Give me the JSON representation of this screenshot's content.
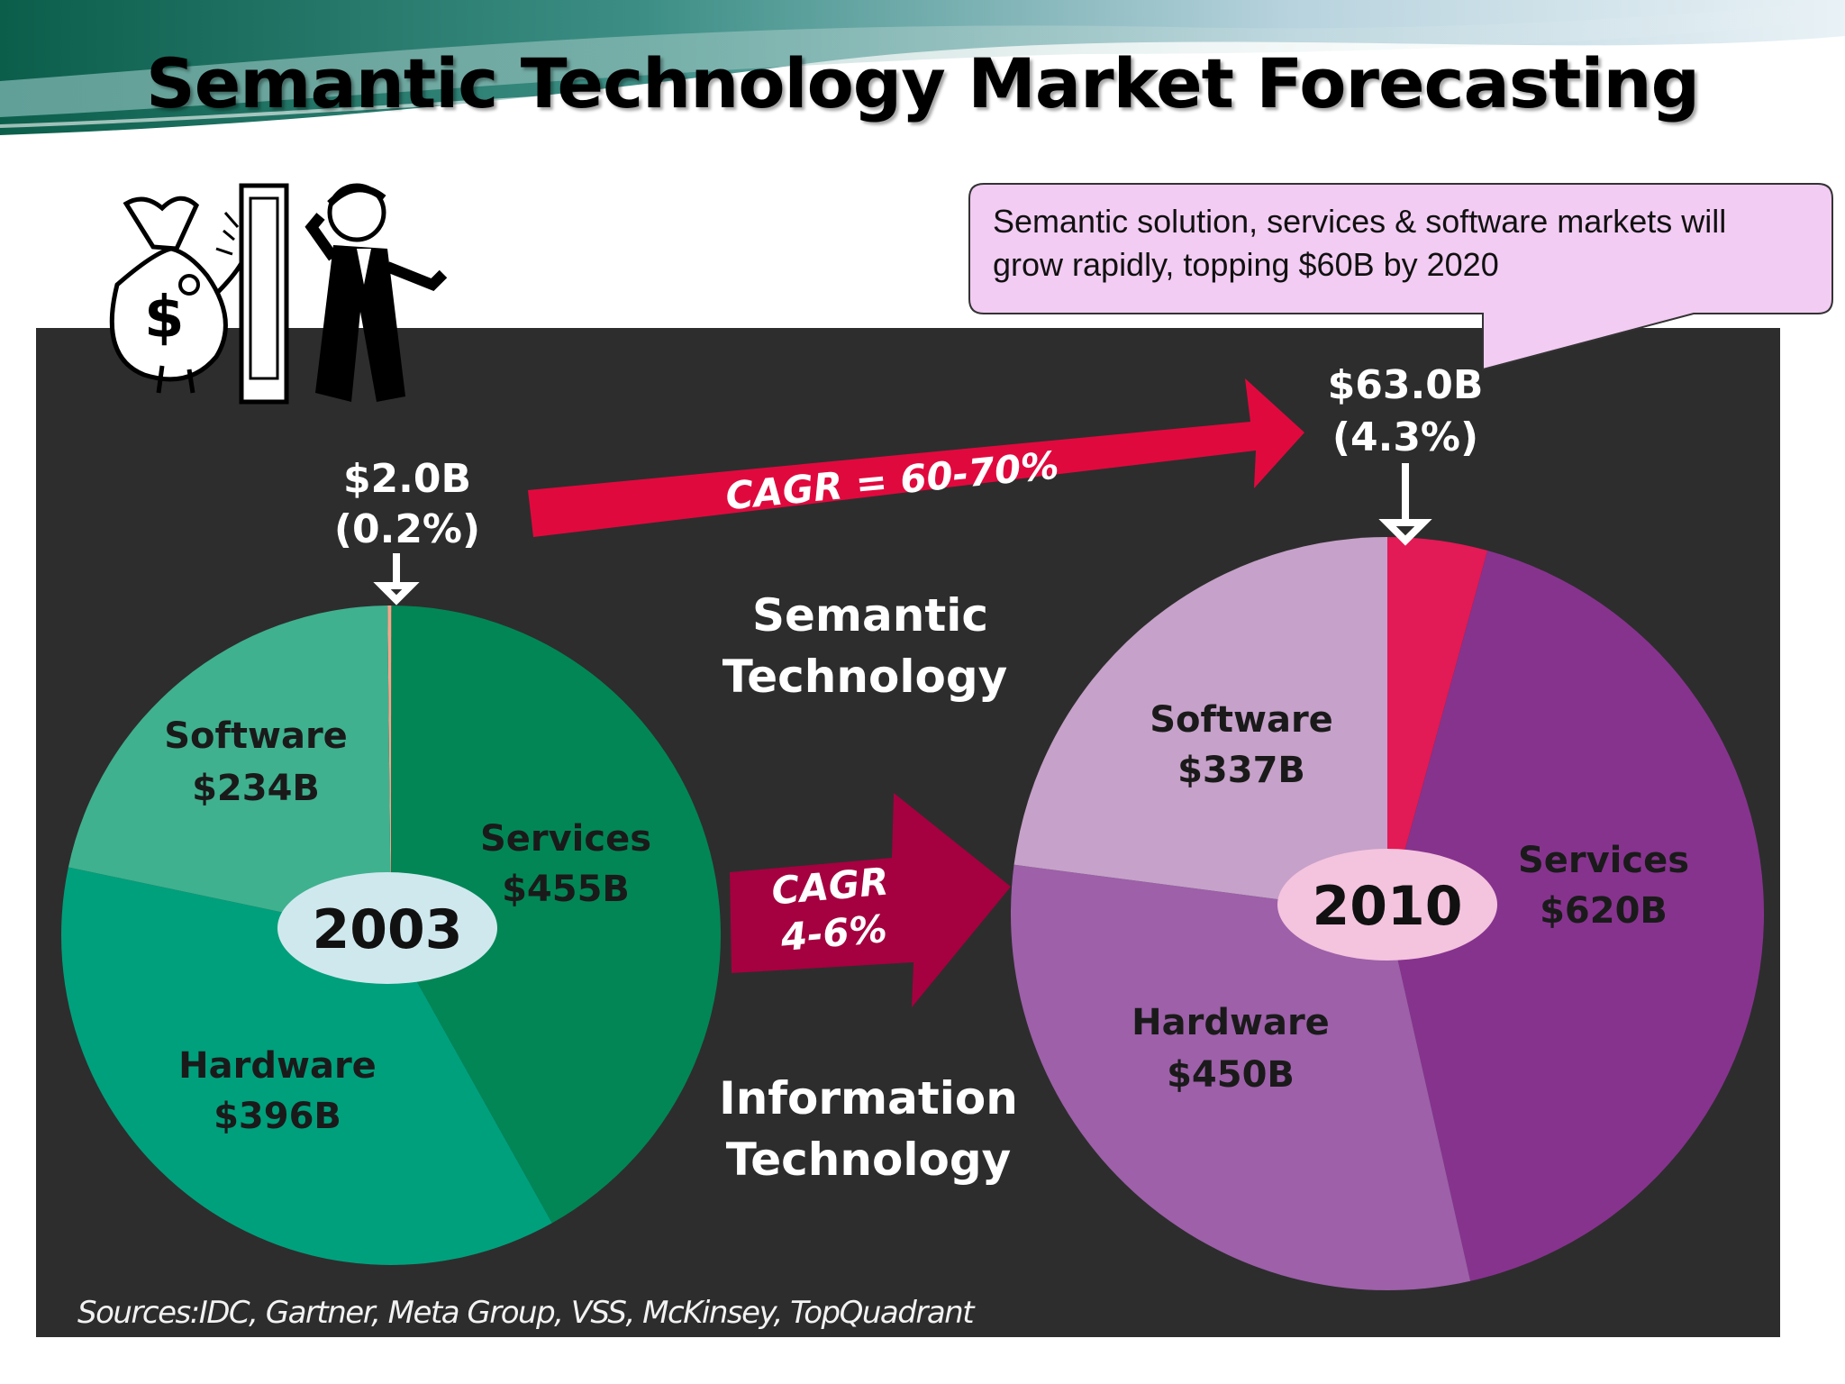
{
  "title": "Semantic Technology Market Forecasting",
  "callout": {
    "line1": "Semantic solution, services & software markets will",
    "line2": "grow rapidly, topping $60B by 2020"
  },
  "colors": {
    "panel": "#2d2d2d",
    "arrow_red": "#e0093e",
    "arrow_crimson": "#a5003f",
    "callout_fill": "#f2ccf2"
  },
  "chart_data": [
    {
      "type": "pie",
      "year": "2003",
      "slices": [
        {
          "name": "Semantic Technology",
          "value": 2.0,
          "color": "#f6a58a"
        },
        {
          "name": "Services",
          "value": 455,
          "value_label": "$455B",
          "color": "#028656"
        },
        {
          "name": "Hardware",
          "value": 396,
          "value_label": "$396B",
          "color": "#00a07c"
        },
        {
          "name": "Software",
          "value": 234,
          "value_label": "$234B",
          "color": "#3fb18f"
        }
      ],
      "callout_value": "$2.0B",
      "callout_share": "(0.2%)"
    },
    {
      "type": "pie",
      "year": "2010",
      "slices": [
        {
          "name": "Semantic Technology",
          "value": 63.0,
          "color": "#e21a55"
        },
        {
          "name": "Services",
          "value": 620,
          "value_label": "$620B",
          "color": "#86338e"
        },
        {
          "name": "Hardware",
          "value": 450,
          "value_label": "$450B",
          "color": "#9d60a9"
        },
        {
          "name": "Software",
          "value": 337,
          "value_label": "$337B",
          "color": "#c6a1c9"
        }
      ],
      "callout_value": "$63.0B",
      "callout_share": "(4.3%)"
    }
  ],
  "arrows": {
    "semantic_cagr": "CAGR = 60-70%",
    "it_cagr_line1": "CAGR",
    "it_cagr_line2": "4-6%"
  },
  "middle_labels": {
    "semantic_line1": "Semantic",
    "semantic_line2": "Technology",
    "it_line1": "Information",
    "it_line2": "Technology"
  },
  "sources": "Sources:IDC, Gartner, Meta Group, VSS, McKinsey, TopQuadrant"
}
